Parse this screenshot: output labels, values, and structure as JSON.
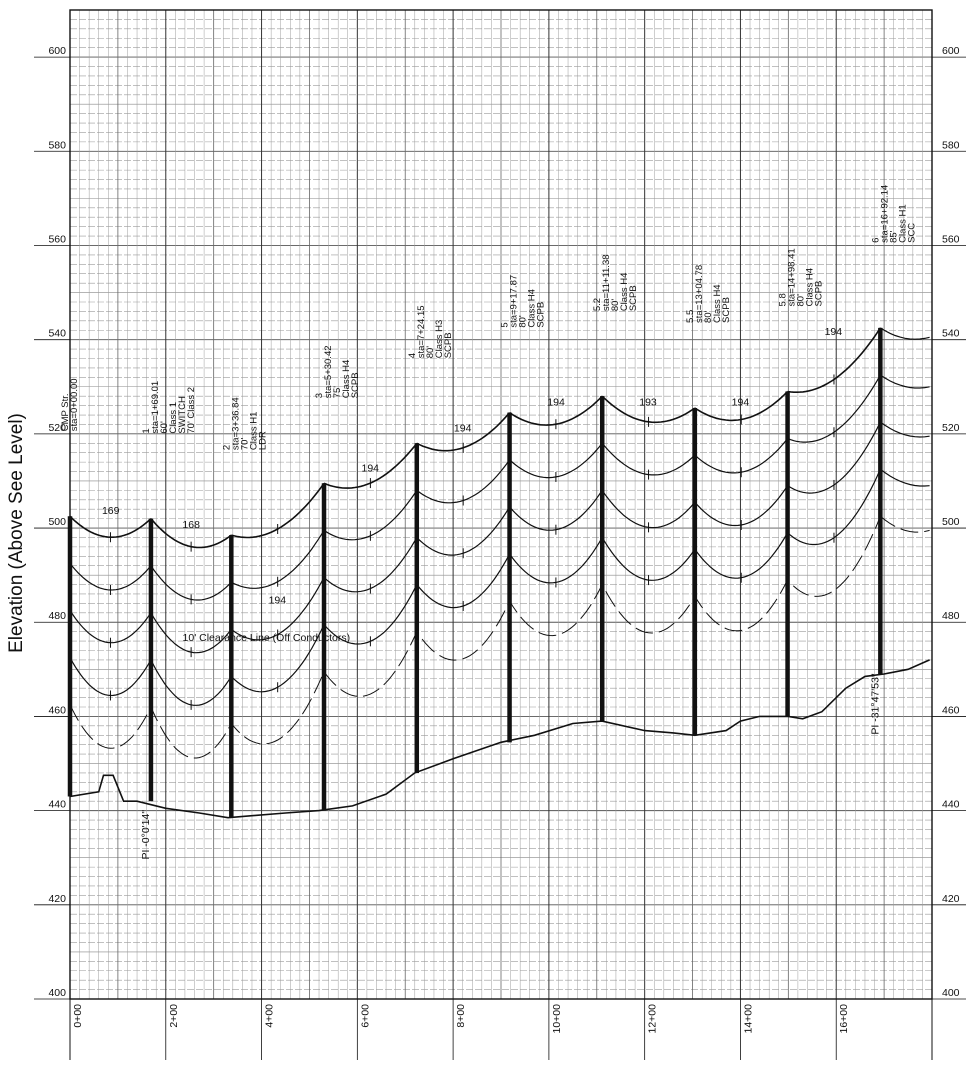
{
  "chart_data": {
    "type": "line",
    "title": "",
    "ylabel": "Elevation (Above See Level)",
    "xlabel": "",
    "ylim": [
      400,
      610
    ],
    "y_ticks": [
      "400",
      "420",
      "440",
      "460",
      "480",
      "500",
      "520",
      "540",
      "560",
      "580",
      "600"
    ],
    "xlim": [
      0,
      1800
    ],
    "x_ticks": [
      "0+00",
      "2+00",
      "4+00",
      "6+00",
      "8+00",
      "10+00",
      "12+00",
      "14+00",
      "16+00"
    ],
    "grid": true,
    "ground_profile": [
      [
        0,
        443
      ],
      [
        60,
        444
      ],
      [
        70,
        447.5
      ],
      [
        90,
        447.5
      ],
      [
        112,
        442
      ],
      [
        140,
        442
      ],
      [
        200,
        440.5
      ],
      [
        270,
        439.5
      ],
      [
        330,
        438.5
      ],
      [
        390,
        439
      ],
      [
        450,
        439.5
      ],
      [
        520,
        440
      ],
      [
        590,
        441
      ],
      [
        660,
        443.5
      ],
      [
        720,
        448
      ],
      [
        800,
        451
      ],
      [
        900,
        454.5
      ],
      [
        970,
        456
      ],
      [
        1050,
        458.5
      ],
      [
        1111,
        459
      ],
      [
        1200,
        457
      ],
      [
        1260,
        456.5
      ],
      [
        1305,
        456
      ],
      [
        1370,
        457
      ],
      [
        1400,
        459
      ],
      [
        1440,
        460
      ],
      [
        1500,
        460
      ],
      [
        1530,
        459.5
      ],
      [
        1570,
        461
      ],
      [
        1620,
        466
      ],
      [
        1660,
        468.5
      ],
      [
        1700,
        469
      ],
      [
        1750,
        470
      ],
      [
        1795,
        472
      ]
    ],
    "structures": [
      {
        "label": "CMP Str.",
        "station": "sta=0+00.00",
        "x": 0,
        "top": 502.5,
        "base": 443,
        "lines": []
      },
      {
        "label": "1",
        "station": "sta=1+69.01",
        "x": 169.01,
        "top": 502,
        "base": 442,
        "lines": [
          "60'",
          "Class 1",
          "SWITCH",
          "70' Class 2"
        ]
      },
      {
        "label": "2",
        "station": "sta=3+36.84",
        "x": 336.84,
        "top": 498.5,
        "base": 438.5,
        "lines": [
          "70'",
          "Class H1",
          "LDR"
        ]
      },
      {
        "label": "3",
        "station": "sta=5+30.42",
        "x": 530.42,
        "top": 509.5,
        "base": 440,
        "lines": [
          "75'",
          "Class H4",
          "SCPB"
        ]
      },
      {
        "label": "4",
        "station": "sta=7+24.15",
        "x": 724.15,
        "top": 518,
        "base": 448,
        "lines": [
          "80'",
          "Class H3",
          "SCPB"
        ]
      },
      {
        "label": "5",
        "station": "sta=9+17.87",
        "x": 917.87,
        "top": 524.5,
        "base": 454.5,
        "lines": [
          "80'",
          "Class H4",
          "SCPB"
        ]
      },
      {
        "label": "5.2",
        "station": "sta=11+11.38",
        "x": 1111.38,
        "top": 528,
        "base": 459,
        "lines": [
          "80'",
          "Class H4",
          "SCPB"
        ]
      },
      {
        "label": "5.5",
        "station": "sta=13+04.78",
        "x": 1304.78,
        "top": 525.5,
        "base": 456,
        "lines": [
          "80'",
          "Class H4",
          "SCPB"
        ]
      },
      {
        "label": "5.8",
        "station": "sta=14+98.41",
        "x": 1498.41,
        "top": 529,
        "base": 460,
        "lines": [
          "80'",
          "Class H4",
          "SCPB"
        ]
      },
      {
        "label": "6",
        "station": "sta=16+92.14",
        "x": 1692.14,
        "top": 542.5,
        "base": 469,
        "lines": [
          "85'",
          "Class H1",
          "SCC"
        ]
      }
    ],
    "span_lengths": [
      {
        "text": "169",
        "x": 85,
        "y": 503
      },
      {
        "text": "168",
        "x": 253,
        "y": 500
      },
      {
        "text": "194",
        "x": 433,
        "y": 484
      },
      {
        "text": "194",
        "x": 627,
        "y": 512
      },
      {
        "text": "194",
        "x": 820,
        "y": 520.5
      },
      {
        "text": "194",
        "x": 1015,
        "y": 526
      },
      {
        "text": "193",
        "x": 1207,
        "y": 526
      },
      {
        "text": "194",
        "x": 1400,
        "y": 526
      },
      {
        "text": "194",
        "x": 1594,
        "y": 541
      }
    ],
    "conductor_offsets": [
      0,
      10,
      20,
      30
    ],
    "sag": 4.2,
    "clearance_offset": 10,
    "clearance_label": "10' Clearance Line (Off Conductors)",
    "pi_labels": [
      {
        "text": "PI -0°0'14\"",
        "x": 169.01
      },
      {
        "text": "PI -31°47'53\"",
        "x": 1692.14
      }
    ]
  }
}
